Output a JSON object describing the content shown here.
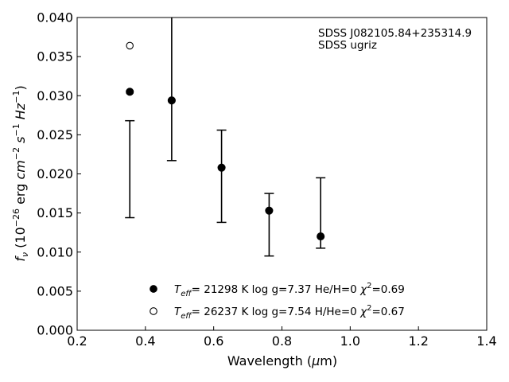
{
  "chart_data": {
    "type": "scatter",
    "xlim": [
      0.2,
      1.4
    ],
    "ylim": [
      0.0,
      0.04
    ],
    "xticks": [
      "0.2",
      "0.4",
      "0.6",
      "0.8",
      "1.0",
      "1.2",
      "1.4"
    ],
    "yticks": [
      "0.000",
      "0.005",
      "0.010",
      "0.015",
      "0.020",
      "0.025",
      "0.030",
      "0.035",
      "0.040"
    ],
    "xlabel": {
      "main": "Wavelength (",
      "symbol": "μ",
      "rest": "m)"
    },
    "ylabel": {
      "f": "f",
      "nu": "ν",
      "open": " (10",
      "exp26": "−26",
      "erg": " erg ",
      "cm": "cm",
      "expm2": "−2",
      "s": " s",
      "expm1a": "−1",
      "hz": " Hz",
      "expm1b": "−1",
      "close": ")"
    },
    "annotations": [
      "SDSS J082105.84+235314.9",
      "SDSS ugriz"
    ],
    "grid": false,
    "legend_position": "bottom-center",
    "observed": {
      "x": [
        0.3543,
        0.477,
        0.6231,
        0.7625,
        0.9134
      ],
      "y": [
        0.0206,
        0.0311,
        0.0197,
        0.0135,
        0.015
      ],
      "yerr": [
        0.0062,
        0.0094,
        0.0059,
        0.004,
        0.0045
      ]
    },
    "series": [
      {
        "marker": "filled-circle",
        "x": [
          0.3543,
          0.477,
          0.6231,
          0.7625,
          0.9134
        ],
        "y": [
          0.0305,
          0.0294,
          0.0208,
          0.0153,
          0.012
        ],
        "legend": {
          "t": "T",
          "sub": "eff",
          "text": "= 21298 K  log g=7.37  He/H=0  ",
          "chi": "χ",
          "sup": "2",
          "end": "=0.69"
        }
      },
      {
        "marker": "open-circle",
        "x": [
          0.3543
        ],
        "y": [
          0.0364
        ],
        "legend": {
          "t": "T",
          "sub": "eff",
          "text": "= 26237 K  log g=7.54  H/He=0  ",
          "chi": "χ",
          "sup": "2",
          "end": "=0.67"
        }
      }
    ]
  }
}
